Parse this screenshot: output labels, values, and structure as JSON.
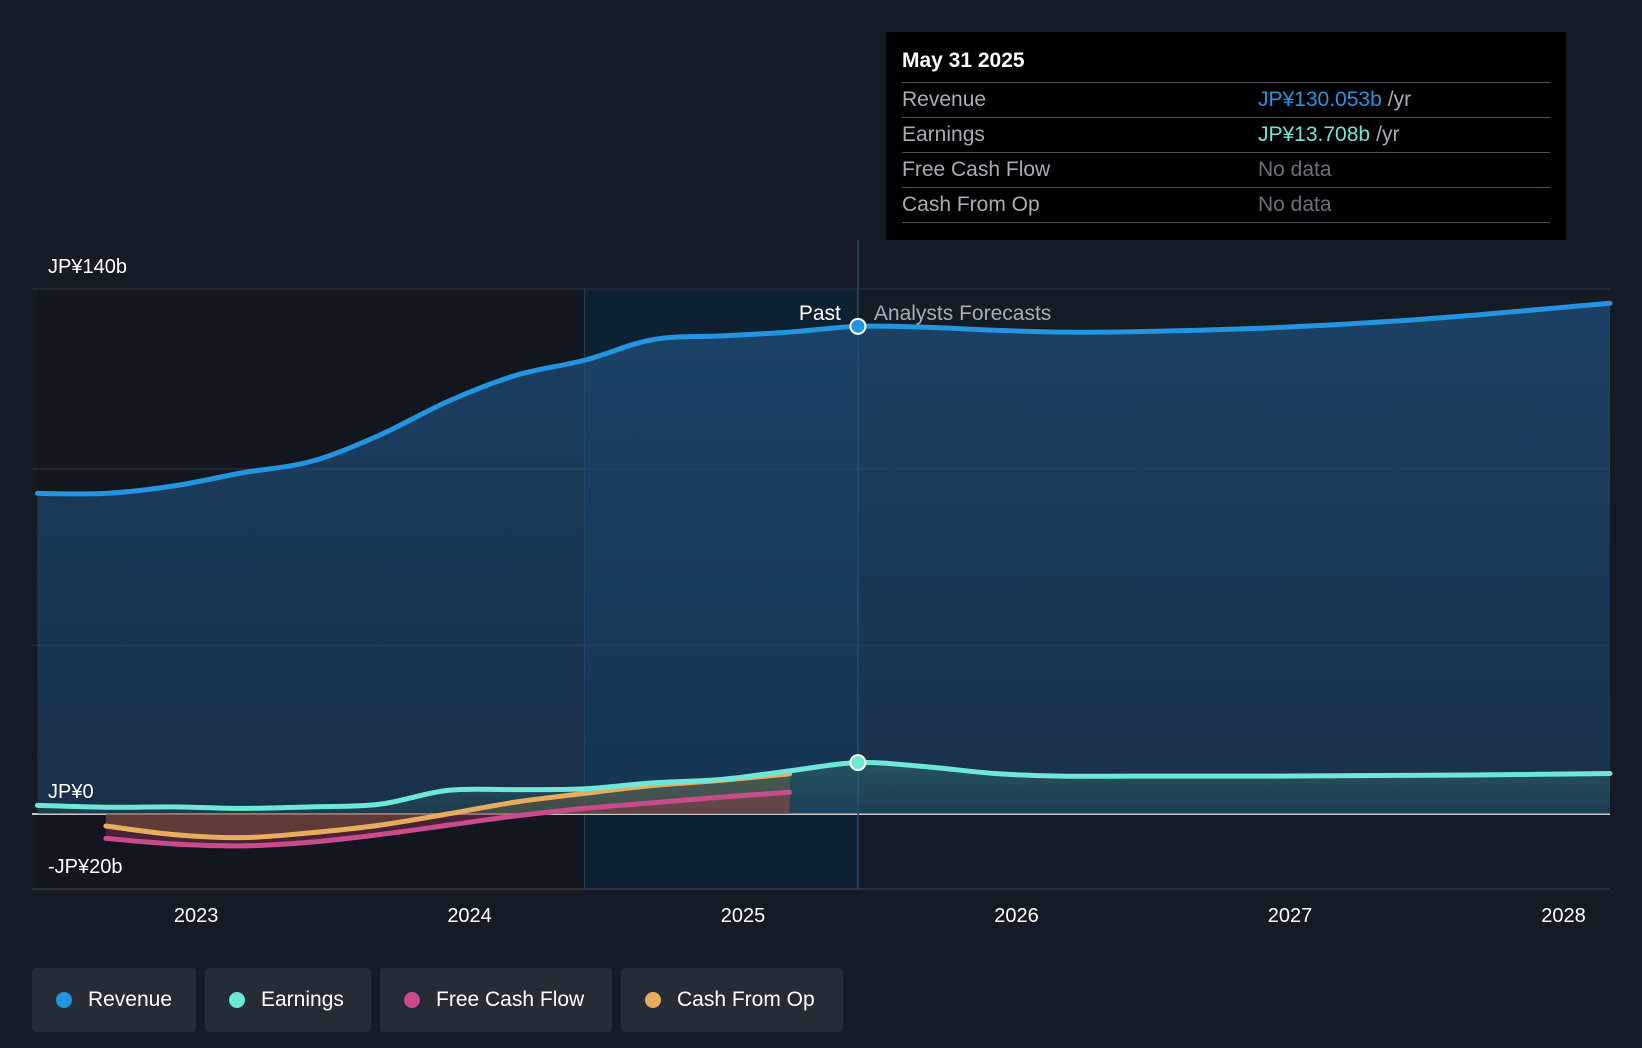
{
  "tooltip": {
    "date": "May 31 2025",
    "rows": [
      {
        "name": "Revenue",
        "value": "JP¥130.053b",
        "unit": "/yr",
        "color": "#2394df"
      },
      {
        "name": "Earnings",
        "value": "JP¥13.708b",
        "unit": "/yr",
        "color": "#6ee7d6"
      },
      {
        "name": "Free Cash Flow",
        "value": "No data",
        "unit": "",
        "color": "#6b7079"
      },
      {
        "name": "Cash From Op",
        "value": "No data",
        "unit": "",
        "color": "#6b7079"
      }
    ]
  },
  "legend": [
    {
      "label": "Revenue",
      "color": "#2394df"
    },
    {
      "label": "Earnings",
      "color": "#6ee7d6"
    },
    {
      "label": "Free Cash Flow",
      "color": "#c94b8c"
    },
    {
      "label": "Cash From Op",
      "color": "#e8ad5c"
    }
  ],
  "chart_data": {
    "type": "line",
    "y_axis_labels": [
      "JP¥140b",
      "JP¥0",
      "-JP¥20b"
    ],
    "ylim": [
      -20,
      140
    ],
    "xlim": [
      2022.4,
      2028.17
    ],
    "x_ticks": [
      2023,
      2024,
      2025,
      2026,
      2027,
      2028
    ],
    "x_tick_labels": [
      "2023",
      "2024",
      "2025",
      "2026",
      "2027",
      "2028"
    ],
    "past_label": "Past",
    "forecast_label": "Analysts Forecasts",
    "divider_x": 2025.42,
    "highlight_start_x": 2024.42,
    "grid": true,
    "series": [
      {
        "name": "Revenue",
        "color": "#2394df",
        "points": [
          [
            2022.42,
            85.5
          ],
          [
            2022.67,
            85.5
          ],
          [
            2022.92,
            87.5
          ],
          [
            2023.17,
            91
          ],
          [
            2023.42,
            94
          ],
          [
            2023.67,
            101
          ],
          [
            2023.92,
            110
          ],
          [
            2024.17,
            117
          ],
          [
            2024.42,
            121
          ],
          [
            2024.67,
            126.5
          ],
          [
            2024.92,
            127.5
          ],
          [
            2025.17,
            128.5
          ],
          [
            2025.42,
            130.05
          ],
          [
            2025.67,
            129.8
          ],
          [
            2025.92,
            129
          ],
          [
            2026.17,
            128.5
          ],
          [
            2026.42,
            128.6
          ],
          [
            2026.67,
            129
          ],
          [
            2026.92,
            129.6
          ],
          [
            2027.17,
            130.5
          ],
          [
            2027.42,
            131.6
          ],
          [
            2027.67,
            133
          ],
          [
            2027.92,
            134.6
          ],
          [
            2028.17,
            136.2
          ]
        ],
        "forecast": [
          [
            2025.42,
            130.05
          ],
          [
            2025.67,
            129.8
          ],
          [
            2025.92,
            129
          ],
          [
            2026.17,
            128.5
          ],
          [
            2026.42,
            128.6
          ],
          [
            2026.67,
            129
          ],
          [
            2026.92,
            129.6
          ],
          [
            2027.17,
            130.5
          ],
          [
            2027.42,
            131.6
          ],
          [
            2027.67,
            133
          ],
          [
            2027.92,
            134.6
          ],
          [
            2028.17,
            136.2
          ]
        ]
      },
      {
        "name": "Earnings",
        "color": "#6ee7d6",
        "points": [
          [
            2022.42,
            2.3
          ],
          [
            2022.67,
            1.8
          ],
          [
            2022.92,
            1.9
          ],
          [
            2023.17,
            1.5
          ],
          [
            2023.42,
            1.9
          ],
          [
            2023.67,
            2.6
          ],
          [
            2023.92,
            6.3
          ],
          [
            2024.17,
            6.5
          ],
          [
            2024.42,
            6.7
          ],
          [
            2024.67,
            8.3
          ],
          [
            2024.92,
            9.2
          ],
          [
            2025.17,
            11.5
          ],
          [
            2025.42,
            13.7
          ],
          [
            2025.67,
            12.6
          ],
          [
            2025.92,
            10.8
          ],
          [
            2026.17,
            10.1
          ],
          [
            2026.42,
            10.1
          ],
          [
            2026.67,
            10.1
          ],
          [
            2026.92,
            10.1
          ],
          [
            2027.17,
            10.2
          ],
          [
            2027.42,
            10.3
          ],
          [
            2027.67,
            10.4
          ],
          [
            2027.92,
            10.6
          ],
          [
            2028.17,
            10.8
          ]
        ]
      },
      {
        "name": "Free Cash Flow",
        "color": "#c94b8c",
        "points": [
          [
            2022.67,
            -6.5
          ],
          [
            2022.92,
            -8.0
          ],
          [
            2023.17,
            -8.5
          ],
          [
            2023.42,
            -7.5
          ],
          [
            2023.67,
            -5.5
          ],
          [
            2023.92,
            -3.0
          ],
          [
            2024.17,
            -0.5
          ],
          [
            2024.42,
            1.5
          ],
          [
            2024.67,
            3.0
          ],
          [
            2024.92,
            4.5
          ],
          [
            2025.17,
            5.8
          ]
        ]
      },
      {
        "name": "Cash From Op",
        "color": "#e8ad5c",
        "points": [
          [
            2022.67,
            -3.2
          ],
          [
            2022.92,
            -5.5
          ],
          [
            2023.17,
            -6.3
          ],
          [
            2023.42,
            -5.0
          ],
          [
            2023.67,
            -3.0
          ],
          [
            2023.92,
            0.0
          ],
          [
            2024.17,
            3.2
          ],
          [
            2024.42,
            5.5
          ],
          [
            2024.67,
            7.6
          ],
          [
            2024.92,
            9.0
          ],
          [
            2025.17,
            10.7
          ]
        ]
      }
    ]
  }
}
